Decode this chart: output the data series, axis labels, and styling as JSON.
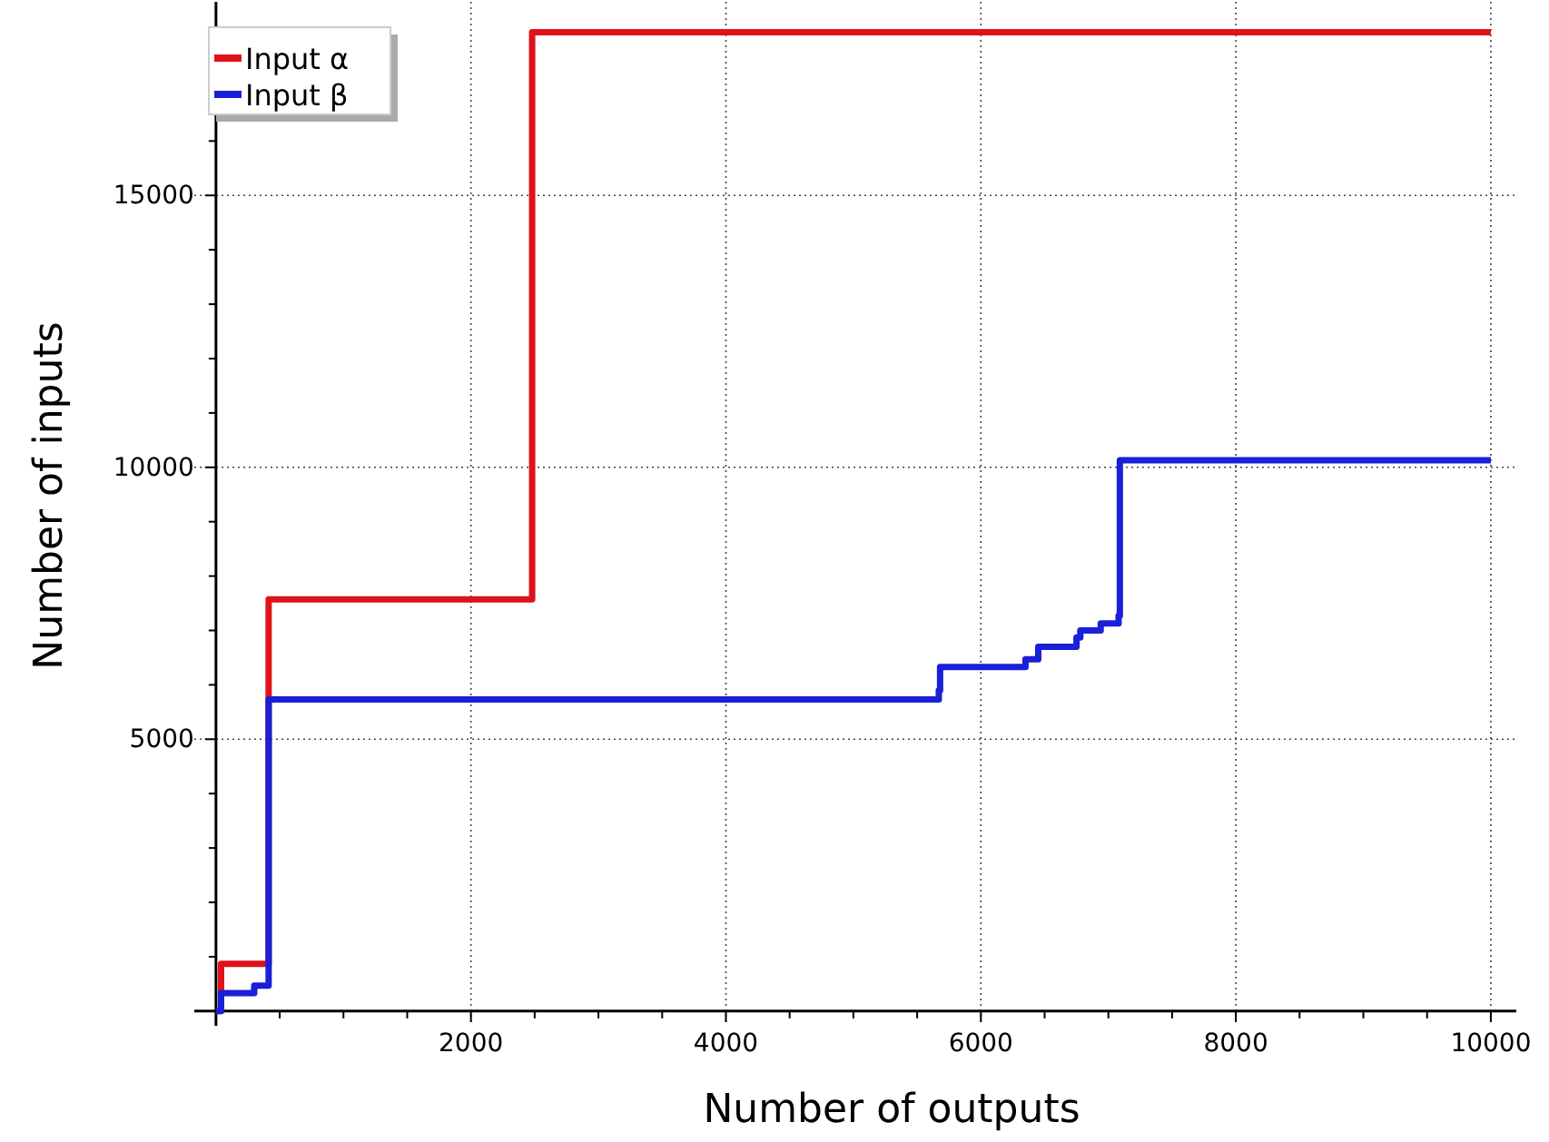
{
  "chart_data": {
    "type": "step",
    "xlabel": "Number of outputs",
    "ylabel": "Number of inputs",
    "xlim": [
      -170,
      10200
    ],
    "ylim": [
      -270,
      18560
    ],
    "xticks": [
      {
        "value": 500,
        "label": null
      },
      {
        "value": 1000,
        "label": null
      },
      {
        "value": 1500,
        "label": null
      },
      2000,
      {
        "value": 2500,
        "label": null
      },
      {
        "value": 3000,
        "label": null
      },
      {
        "value": 3500,
        "label": null
      },
      4000,
      {
        "value": 4500,
        "label": null
      },
      {
        "value": 5000,
        "label": null
      },
      {
        "value": 5500,
        "label": null
      },
      6000,
      {
        "value": 6500,
        "label": null
      },
      {
        "value": 7000,
        "label": null
      },
      {
        "value": 7500,
        "label": null
      },
      8000,
      {
        "value": 8500,
        "label": null
      },
      {
        "value": 9000,
        "label": null
      },
      {
        "value": 9500,
        "label": null
      },
      10000
    ],
    "yticks": [
      {
        "value": 1000,
        "label": null
      },
      {
        "value": 2000,
        "label": null
      },
      {
        "value": 3000,
        "label": null
      },
      {
        "value": 4000,
        "label": null
      },
      5000,
      {
        "value": 6000,
        "label": null
      },
      {
        "value": 7000,
        "label": null
      },
      {
        "value": 8000,
        "label": null
      },
      {
        "value": 9000,
        "label": null
      },
      10000,
      {
        "value": 11000,
        "label": null
      },
      {
        "value": 12000,
        "label": null
      },
      {
        "value": 13000,
        "label": null
      },
      {
        "value": 14000,
        "label": null
      },
      15000,
      {
        "value": 16000,
        "label": null
      },
      {
        "value": 17000,
        "label": null
      },
      {
        "value": 18000,
        "label": null
      }
    ],
    "grid": true,
    "legend": "top left",
    "line_style": "solid",
    "series": [
      {
        "name": "Input α",
        "color": "#e0121b",
        "x": [
          0,
          40,
          413,
          2480,
          10000
        ],
        "values": [
          0,
          870,
          7570,
          18000,
          18000
        ]
      },
      {
        "name": "Input β",
        "color": "#1a1fd8",
        "x": [
          0,
          40,
          300,
          413,
          5670,
          5680,
          6350,
          6450,
          6750,
          6780,
          6940,
          7080,
          7090,
          10000
        ],
        "values": [
          0,
          330,
          470,
          5730,
          5900,
          6330,
          6470,
          6700,
          6870,
          7000,
          7130,
          7270,
          10130,
          10130
        ]
      }
    ]
  }
}
